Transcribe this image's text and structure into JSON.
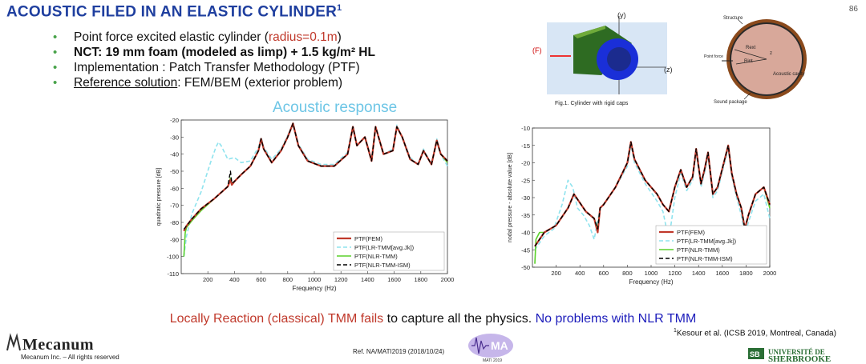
{
  "slide": {
    "title": "ACOUSTIC FILED IN AN ELASTIC  CYLINDER",
    "title_sup": "1",
    "page_number": "86",
    "bullets": [
      {
        "parts": [
          {
            "t": "Point force excited elastic cylinder ("
          },
          {
            "t": "radius=0.1m",
            "style": "red"
          },
          {
            "t": ")"
          }
        ]
      },
      {
        "parts": [
          {
            "t": "NCT: 19 mm foam (modeled as limp) + 1.5 kg/m² HL",
            "style": "bold"
          }
        ]
      },
      {
        "parts": [
          {
            "t": "Implementation : Patch Transfer Methodology (PTF)"
          }
        ]
      },
      {
        "parts": [
          {
            "t": "Reference solution",
            "style": "underline"
          },
          {
            "t": ": FEM/BEM (exterior problem)"
          }
        ]
      }
    ],
    "acoustic_response_label": "Acoustic response",
    "conclusion": {
      "part1": "Locally Reaction (classical) TMM fails",
      "part2": " to capture all the physics. ",
      "part3": "No problems with NLR TMM"
    },
    "citation": "Kesour et al. (ICSB 2019, Montreal, Canada)",
    "citation_sup": "1",
    "reference": "Ref. NA/MATI2019  (2018/10/24)",
    "mati_label": "MATI 2019",
    "logo_name": "Mecanum",
    "copyright": "Mecanum Inc. – All rights reserved",
    "university_line1": "UNIVERSITÉ DE",
    "university_line2": "SHERBROOKE",
    "colors": {
      "title": "#1f3f9f",
      "bullet": "#49a34b",
      "ptf_fem": "#c0392b",
      "lr_tmm": "#8fe3ee",
      "nlr_tmm": "#5bd12c",
      "nlr_ism": "#000000",
      "acoustic_label": "#6ec6e6",
      "nlr_text": "#1d1dbb"
    }
  },
  "figure_left": {
    "caption": "Fig.1. Cylinder with rigid caps",
    "force_label": "(F)",
    "y_label": "(y)",
    "z_label": "(z)"
  },
  "figure_right": {
    "labels": [
      "Structure",
      "Rext",
      "Rint",
      "Point force",
      "Acoustic cavity",
      "Sound package",
      "z"
    ]
  },
  "chart_data": [
    {
      "type": "line",
      "title": "",
      "xlabel": "Frequency (Hz)",
      "ylabel": "quadratic pressure [dB]",
      "xlim": [
        0,
        2000
      ],
      "ylim": [
        -110,
        -20
      ],
      "xticks": [
        200,
        400,
        600,
        800,
        1000,
        1200,
        1400,
        1600,
        1800,
        2000
      ],
      "yticks": [
        -20,
        -30,
        -40,
        -50,
        -60,
        -70,
        -80,
        -90,
        -100,
        -110
      ],
      "legend": "bottom-right",
      "series": [
        {
          "name": "PTF(FEM)",
          "x": [
            20,
            40,
            80,
            150,
            250,
            350,
            370,
            380,
            400,
            450,
            520,
            580,
            600,
            620,
            680,
            750,
            800,
            840,
            880,
            950,
            1050,
            1150,
            1250,
            1290,
            1320,
            1380,
            1430,
            1460,
            1520,
            1590,
            1620,
            1660,
            1720,
            1780,
            1820,
            1880,
            1920,
            1950,
            2000
          ],
          "values": [
            -85,
            -82,
            -78,
            -72,
            -66,
            -59,
            -55,
            -58,
            -56,
            -52,
            -47,
            -38,
            -31,
            -37,
            -45,
            -38,
            -30,
            -22,
            -35,
            -44,
            -47,
            -47,
            -40,
            -24,
            -35,
            -30,
            -44,
            -24,
            -40,
            -38,
            -24,
            -30,
            -43,
            -46,
            -38,
            -46,
            -32,
            -40,
            -44
          ]
        },
        {
          "name": "PTF(LR-TMM[avg.Jk])",
          "x": [
            20,
            40,
            80,
            150,
            220,
            260,
            280,
            300,
            350,
            400,
            450,
            520,
            580,
            600,
            620,
            680,
            750,
            800,
            840,
            880,
            950,
            1050,
            1150,
            1250,
            1290,
            1320,
            1380,
            1430,
            1460,
            1520,
            1590,
            1620,
            1660,
            1720,
            1780,
            1820,
            1880,
            1920,
            1950,
            2000
          ],
          "values": [
            -100,
            -88,
            -75,
            -62,
            -45,
            -36,
            -33,
            -35,
            -43,
            -42,
            -45,
            -44,
            -36,
            -30,
            -36,
            -43,
            -37,
            -29,
            -22,
            -34,
            -43,
            -46,
            -46,
            -39,
            -23,
            -35,
            -30,
            -43,
            -24,
            -40,
            -37,
            -23,
            -30,
            -42,
            -46,
            -37,
            -46,
            -31,
            -40,
            -47
          ]
        },
        {
          "name": "PTF(NLR-TMM)",
          "x": [
            20,
            30,
            40,
            80,
            150,
            250,
            350,
            370,
            380,
            400,
            450,
            520,
            580,
            600,
            620,
            680,
            750,
            800,
            840,
            880,
            950,
            1050,
            1150,
            1250,
            1290,
            1320,
            1380,
            1430,
            1460,
            1520,
            1590,
            1620,
            1660,
            1720,
            1780,
            1820,
            1880,
            1920,
            1950,
            2000
          ],
          "values": [
            -100,
            -86,
            -83,
            -79,
            -73,
            -66,
            -59,
            -54,
            -58,
            -56,
            -52,
            -47,
            -38,
            -31,
            -37,
            -45,
            -38,
            -30,
            -22,
            -35,
            -44,
            -47,
            -47,
            -40,
            -24,
            -35,
            -30,
            -44,
            -24,
            -40,
            -38,
            -24,
            -30,
            -43,
            -46,
            -38,
            -46,
            -32,
            -40,
            -45
          ]
        },
        {
          "name": "PTF(NLR-TMM-ISM)",
          "x": [
            20,
            40,
            80,
            150,
            250,
            350,
            370,
            380,
            400,
            450,
            520,
            580,
            600,
            620,
            680,
            750,
            800,
            840,
            880,
            950,
            1050,
            1150,
            1250,
            1290,
            1320,
            1380,
            1430,
            1460,
            1520,
            1590,
            1620,
            1660,
            1720,
            1780,
            1820,
            1880,
            1920,
            1950,
            2000
          ],
          "values": [
            -84,
            -82,
            -78,
            -72,
            -66,
            -59,
            -50,
            -57,
            -56,
            -52,
            -47,
            -38,
            -31,
            -37,
            -45,
            -38,
            -30,
            -22,
            -35,
            -44,
            -47,
            -47,
            -40,
            -24,
            -35,
            -30,
            -44,
            -24,
            -40,
            -38,
            -24,
            -30,
            -43,
            -46,
            -38,
            -46,
            -32,
            -40,
            -44
          ]
        }
      ]
    },
    {
      "type": "line",
      "title": "",
      "xlabel": "Frequency (Hz)",
      "ylabel": "nodal pressure - absolute value [dB]",
      "xlim": [
        0,
        2000
      ],
      "ylim": [
        -50,
        -10
      ],
      "xticks": [
        200,
        400,
        600,
        800,
        1000,
        1200,
        1400,
        1600,
        1800,
        2000
      ],
      "yticks": [
        -10,
        -15,
        -20,
        -25,
        -30,
        -35,
        -40,
        -45,
        -50
      ],
      "legend": "bottom-right",
      "series": [
        {
          "name": "PTF(FEM)",
          "x": [
            20,
            100,
            200,
            300,
            350,
            450,
            520,
            550,
            570,
            600,
            700,
            800,
            830,
            860,
            950,
            1050,
            1100,
            1150,
            1200,
            1250,
            1300,
            1350,
            1380,
            1420,
            1450,
            1480,
            1520,
            1560,
            1620,
            1650,
            1680,
            1720,
            1760,
            1790,
            1820,
            1880,
            1950,
            2000
          ],
          "values": [
            -44,
            -40,
            -38,
            -33,
            -29,
            -34,
            -36,
            -40,
            -33,
            -32,
            -27,
            -20,
            -14,
            -19,
            -25,
            -29,
            -32,
            -34,
            -27,
            -22,
            -27,
            -24,
            -16,
            -26,
            -22,
            -17,
            -29,
            -27,
            -19,
            -15,
            -23,
            -29,
            -33,
            -39,
            -35,
            -29,
            -27,
            -32
          ]
        },
        {
          "name": "PTF(LR-TMM[avg.Jk])",
          "x": [
            20,
            100,
            180,
            250,
            300,
            340,
            380,
            430,
            480,
            520,
            570,
            600,
            700,
            800,
            830,
            860,
            950,
            1050,
            1100,
            1130,
            1150,
            1200,
            1250,
            1300,
            1350,
            1380,
            1420,
            1450,
            1480,
            1520,
            1560,
            1620,
            1650,
            1680,
            1720,
            1760,
            1790,
            1820,
            1880,
            1950,
            2000
          ],
          "values": [
            -45,
            -41,
            -39,
            -32,
            -25,
            -27,
            -33,
            -35,
            -38,
            -42,
            -33,
            -32,
            -27,
            -21,
            -15,
            -20,
            -26,
            -31,
            -34,
            -39,
            -42,
            -30,
            -23,
            -28,
            -25,
            -17,
            -27,
            -23,
            -18,
            -30,
            -28,
            -20,
            -16,
            -24,
            -30,
            -35,
            -41,
            -37,
            -31,
            -29,
            -36
          ]
        },
        {
          "name": "PTF(NLR-TMM)",
          "x": [
            20,
            30,
            60,
            100,
            200,
            300,
            350,
            450,
            520,
            550,
            570,
            600,
            700,
            800,
            830,
            860,
            950,
            1050,
            1100,
            1150,
            1200,
            1250,
            1300,
            1350,
            1380,
            1420,
            1450,
            1480,
            1520,
            1560,
            1620,
            1650,
            1680,
            1720,
            1760,
            1790,
            1820,
            1880,
            1950,
            2000
          ],
          "values": [
            -49,
            -42,
            -40,
            -40,
            -38,
            -33,
            -29,
            -34,
            -36,
            -39,
            -33,
            -32,
            -27,
            -20,
            -14,
            -19,
            -25,
            -29,
            -32,
            -34,
            -27,
            -22,
            -27,
            -24,
            -16,
            -26,
            -22,
            -17,
            -29,
            -27,
            -19,
            -15,
            -23,
            -29,
            -33,
            -39,
            -35,
            -29,
            -27,
            -33
          ]
        },
        {
          "name": "PTF(NLR-TMM-ISM)",
          "x": [
            20,
            100,
            200,
            300,
            350,
            450,
            520,
            550,
            570,
            600,
            700,
            800,
            830,
            860,
            950,
            1050,
            1100,
            1150,
            1200,
            1250,
            1300,
            1350,
            1380,
            1420,
            1450,
            1480,
            1520,
            1560,
            1620,
            1650,
            1680,
            1720,
            1760,
            1790,
            1820,
            1880,
            1950,
            2000
          ],
          "values": [
            -44,
            -40,
            -38,
            -33,
            -29,
            -34,
            -36,
            -39,
            -33,
            -32,
            -27,
            -20,
            -14,
            -19,
            -25,
            -29,
            -32,
            -34,
            -27,
            -22,
            -27,
            -24,
            -16,
            -26,
            -22,
            -17,
            -29,
            -27,
            -19,
            -15,
            -23,
            -29,
            -33,
            -39,
            -35,
            -29,
            -27,
            -32
          ]
        }
      ]
    }
  ]
}
